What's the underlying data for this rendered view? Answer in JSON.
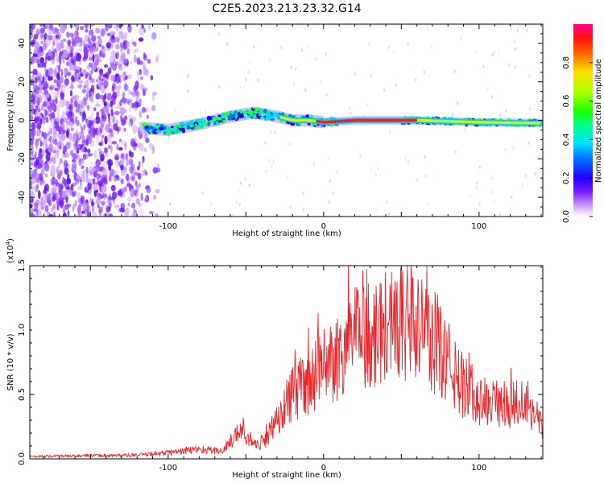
{
  "title": "C2E5.2023.213.23.32.G14",
  "colors": {
    "snr_line": "#e8262a",
    "axis": "#000000",
    "background": "#ffffff"
  },
  "chart_data": [
    {
      "type": "heatmap",
      "name": "spectrogram",
      "xlabel": "Height of straight line (km)",
      "ylabel": "Frequency (Hz)",
      "xlim": [
        -189,
        141
      ],
      "ylim": [
        -50,
        50
      ],
      "xticks": [
        -100,
        0,
        100
      ],
      "yticks": [
        -40,
        -20,
        0,
        20,
        40
      ],
      "colorbar": {
        "label": "Normalized spectral amplitude",
        "range": [
          0,
          1
        ],
        "ticks": [
          "0.0",
          "0.2",
          "0.4",
          "0.6",
          "0.8"
        ],
        "tick_values": [
          0.0,
          0.2,
          0.4,
          0.6,
          0.8
        ]
      },
      "ridge": {
        "x": [
          -115,
          -100,
          -80,
          -60,
          -45,
          -30,
          -20,
          -10,
          0,
          20,
          60,
          100,
          141
        ],
        "y": [
          -4,
          -5,
          -2,
          2,
          4,
          2,
          0,
          0,
          -1,
          0,
          0,
          -1,
          -1.5
        ]
      }
    },
    {
      "type": "line",
      "name": "snr",
      "xlabel": "Height of straight line (km)",
      "ylabel": "SNR (10 * v/v)",
      "y_multiplier": "(x10^4)",
      "y_multiplier_base": "(x10",
      "y_multiplier_exp": "4",
      "y_multiplier_close": ")",
      "xlim": [
        -189,
        141
      ],
      "ylim": [
        0,
        1.5
      ],
      "xticks": [
        -100,
        0,
        100
      ],
      "yticks": [
        0.0,
        0.5,
        1.0,
        1.5
      ],
      "ytick_labels": [
        "0.0",
        "0.5",
        "1.0",
        "1.5"
      ],
      "envelope": {
        "x": [
          -189,
          -120,
          -100,
          -80,
          -65,
          -55,
          -45,
          -35,
          -25,
          -15,
          0,
          15,
          30,
          45,
          55,
          65,
          75,
          85,
          100,
          115,
          130,
          141
        ],
        "y": [
          0.02,
          0.03,
          0.05,
          0.08,
          0.06,
          0.25,
          0.12,
          0.2,
          0.55,
          0.65,
          0.85,
          1.05,
          1.2,
          1.3,
          1.28,
          1.15,
          1.05,
          0.75,
          0.55,
          0.5,
          0.55,
          0.3
        ]
      }
    }
  ]
}
